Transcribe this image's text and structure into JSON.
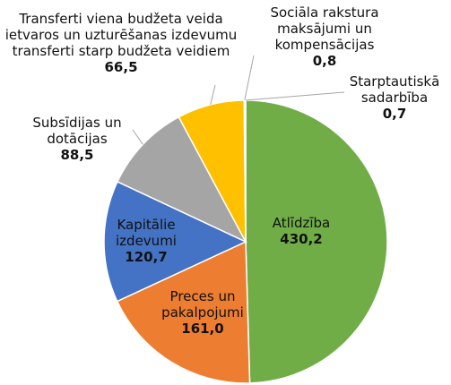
{
  "chart_data": {
    "type": "pie",
    "categories": [
      "Atlīdzība",
      "Preces un\npakalpojumi",
      "Kapitālie\nizdevumi",
      "Subsīdijas un\ndotācijas",
      "Transferti viena budžeta veida\nietvaros un uzturēšanas izdevumu\ntransferti starp budžeta veidiem",
      "Sociāla rakstura\nmaksājumi un\nkompensācijas",
      "Starptautiskā\nsadarbība"
    ],
    "values": [
      430.2,
      161.0,
      120.7,
      88.5,
      66.5,
      0.8,
      0.7
    ],
    "value_labels": [
      "430,2",
      "161,0",
      "120,7",
      "88,5",
      "66,5",
      "0,8",
      "0,7"
    ],
    "colors": [
      "#70ad47",
      "#ed7d31",
      "#4472c4",
      "#a5a5a5",
      "#ffc000",
      "#5b9bd5",
      "#264478"
    ]
  }
}
